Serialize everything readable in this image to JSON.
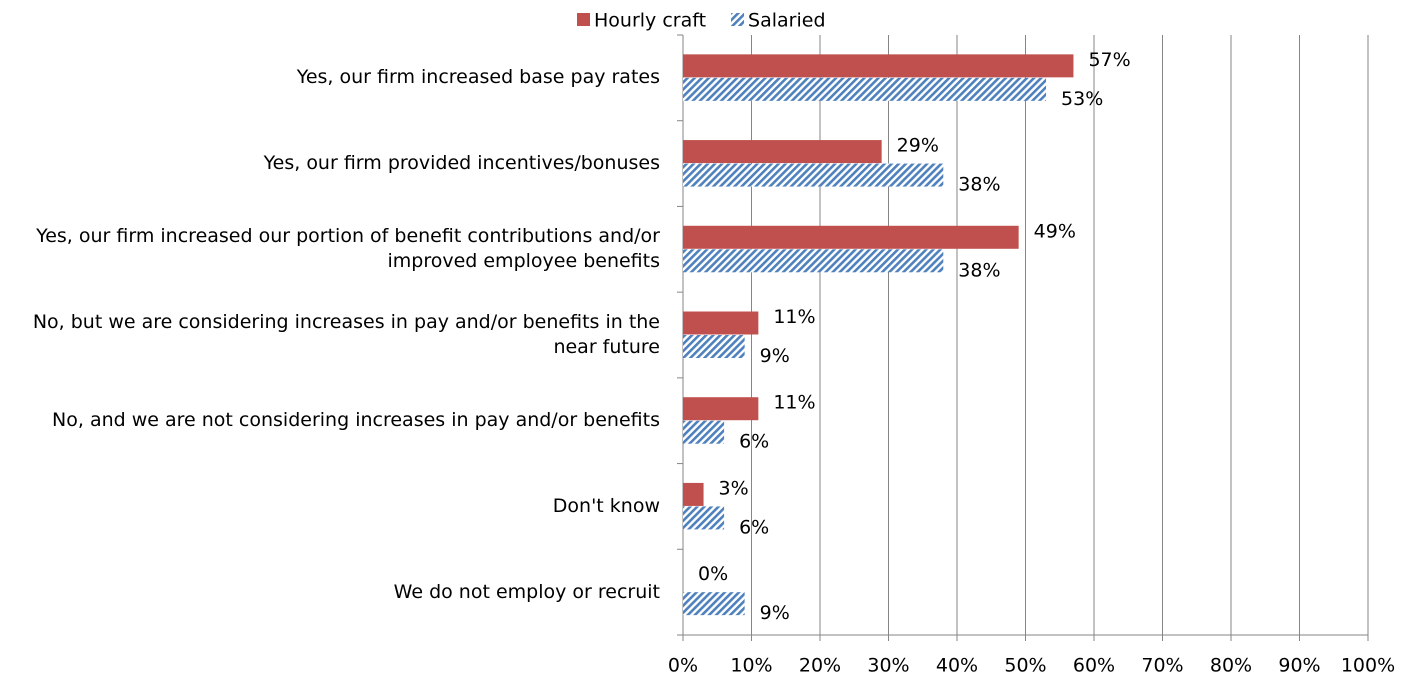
{
  "chart_data": {
    "type": "bar",
    "orientation": "horizontal",
    "categories": [
      "Yes, our firm increased base pay rates",
      "Yes, our firm provided incentives/bonuses",
      "Yes, our firm increased our portion of benefit contributions and/or improved employee benefits",
      "No, but we are considering increases in pay and/or benefits in the near future",
      "No, and we are not considering increases in pay and/or benefits",
      "Don't know",
      "We do not employ or recruit"
    ],
    "series": [
      {
        "name": "Hourly craft",
        "color": "#c0504d",
        "values": [
          57,
          29,
          49,
          11,
          11,
          3,
          0
        ],
        "value_labels": [
          "57%",
          "29%",
          "49%",
          "11%",
          "11%",
          "3%",
          "0%"
        ]
      },
      {
        "name": "Salaried",
        "color": "#4f81bd",
        "pattern": "diagonal-hatch",
        "values": [
          53,
          38,
          38,
          9,
          6,
          6,
          9
        ],
        "value_labels": [
          "53%",
          "38%",
          "38%",
          "9%",
          "6%",
          "6%",
          "9%"
        ]
      }
    ],
    "xlim": [
      0,
      100
    ],
    "xticks": [
      {
        "value": 0,
        "label": "0%"
      },
      {
        "value": 10,
        "label": "10%"
      },
      {
        "value": 20,
        "label": "20%"
      },
      {
        "value": 30,
        "label": "30%"
      },
      {
        "value": 40,
        "label": "40%"
      },
      {
        "value": 50,
        "label": "50%"
      },
      {
        "value": 60,
        "label": "60%"
      },
      {
        "value": 70,
        "label": "70%"
      },
      {
        "value": 80,
        "label": "80%"
      },
      {
        "value": 90,
        "label": "90%"
      },
      {
        "value": 100,
        "label": "100%"
      }
    ],
    "grid": true,
    "legend": "top"
  }
}
